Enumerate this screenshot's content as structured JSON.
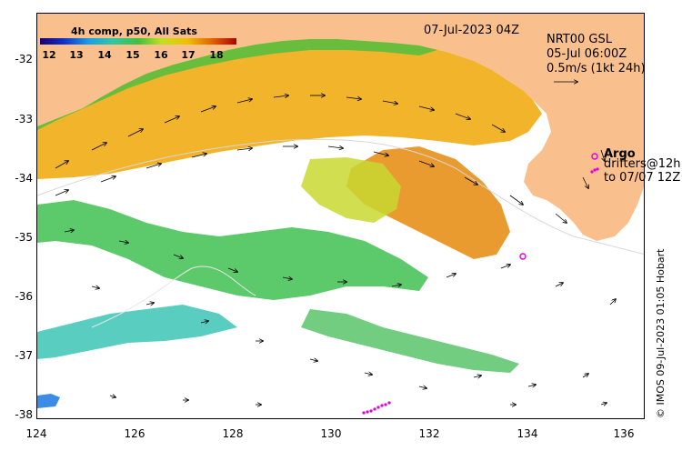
{
  "map": {
    "composite_title": "4h comp, p50, All Sats",
    "date_label": "07-Jul-2023 04Z",
    "colorbar_labels": [
      "12",
      "13",
      "14",
      "15",
      "16",
      "17",
      "18"
    ],
    "colorbar_range": [
      12,
      18
    ],
    "current_product": "NRT00 GSL",
    "current_time": "05-Jul 06:00Z",
    "arrow_scale": "0.5m/s (1kt 24h)",
    "argo_label": "Argo",
    "drifters_label": "drifters@12h",
    "drifters_to": "to 07/07 12Z",
    "credit": "© IMOS 09-Jul-2023 01:05 Hobart",
    "lat_ticks": [
      "-32",
      "-33",
      "-34",
      "-35",
      "-36",
      "-37",
      "-38"
    ],
    "lon_ticks": [
      "124",
      "126",
      "128",
      "130",
      "132",
      "134",
      "136"
    ],
    "lat_range": [
      -38.1,
      -31.3
    ],
    "lon_range": [
      124,
      136.3
    ],
    "colors": {
      "land": "#f9c08e",
      "argo": "#e000e0",
      "drifters": "#e000e0"
    }
  }
}
